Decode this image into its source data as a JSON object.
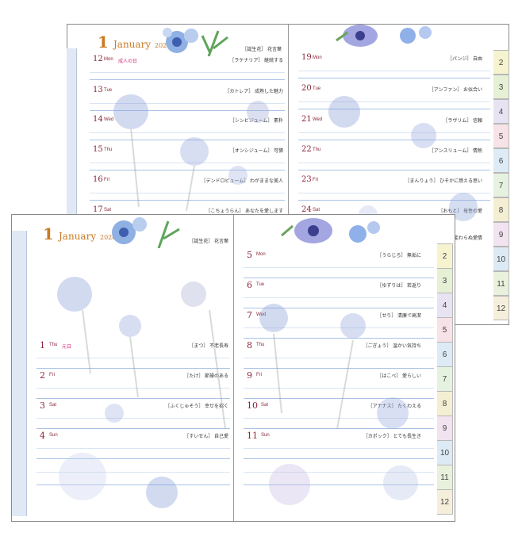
{
  "back_spread": {
    "left": {
      "month_num": "1",
      "month_name": "January",
      "year": "2026",
      "header_note": "［誕生花］ 花言葉",
      "days": [
        {
          "num": "12",
          "dow": "Mon",
          "holiday": "成人の日",
          "note": "［ラケナリア］ 継続する"
        },
        {
          "num": "13",
          "dow": "Tue",
          "holiday": "",
          "note": "［カトレア］ 成熟した魅力"
        },
        {
          "num": "14",
          "dow": "Wed",
          "holiday": "",
          "note": "［シンビジューム］ 素朴"
        },
        {
          "num": "15",
          "dow": "Thu",
          "holiday": "",
          "note": "［オンシジューム］ 可憐"
        },
        {
          "num": "16",
          "dow": "Fri",
          "holiday": "",
          "note": "［デンドロビューム］ わがままな美人"
        },
        {
          "num": "17",
          "dow": "Sat",
          "holiday": "",
          "note": "［こちょうらん］ あなたを愛します"
        }
      ]
    },
    "right": {
      "days": [
        {
          "num": "19",
          "dow": "Mon",
          "holiday": "",
          "note": "［パンジ］ 自由"
        },
        {
          "num": "20",
          "dow": "Tue",
          "holiday": "",
          "note": "［アンファン］ お似合い"
        },
        {
          "num": "21",
          "dow": "Wed",
          "holiday": "",
          "note": "［ラヴリム］ 信頼"
        },
        {
          "num": "22",
          "dow": "Thu",
          "holiday": "",
          "note": "［アンスリューム］ 情熱"
        },
        {
          "num": "23",
          "dow": "Fri",
          "holiday": "",
          "note": "［まんりょう］ ひそかに燃える思い"
        },
        {
          "num": "24",
          "dow": "Sat",
          "holiday": "",
          "note": "［おもと］ 母性の愛"
        },
        {
          "num": "",
          "dow": "",
          "holiday": "",
          "note": "永遠に変わらぬ愛情"
        }
      ],
      "tabs": [
        "2",
        "3",
        "4",
        "5",
        "6",
        "7",
        "8",
        "9",
        "10",
        "11",
        "12"
      ]
    }
  },
  "front_spread": {
    "left": {
      "month_num": "1",
      "month_name": "January",
      "year": "2026",
      "header_note": "［誕生花］ 花言葉",
      "days": [
        {
          "num": "1",
          "dow": "Thu",
          "holiday": "元日",
          "note": "［まつ］ 不老長寿"
        },
        {
          "num": "2",
          "dow": "Fri",
          "holiday": "",
          "note": "［たけ］ 節操のある"
        },
        {
          "num": "3",
          "dow": "Sat",
          "holiday": "",
          "note": "［ふくじゅそう］ 幸せを招く"
        },
        {
          "num": "4",
          "dow": "Sun",
          "holiday": "",
          "note": "［すいせん］ 自己愛"
        }
      ]
    },
    "right": {
      "days": [
        {
          "num": "5",
          "dow": "Mon",
          "holiday": "",
          "note": "［うらじろ］ 無垢に"
        },
        {
          "num": "6",
          "dow": "Tue",
          "holiday": "",
          "note": "［ゆずりは］ 若返り"
        },
        {
          "num": "7",
          "dow": "Wed",
          "holiday": "",
          "note": "［せり］ 清廉で高潔"
        },
        {
          "num": "8",
          "dow": "Thu",
          "holiday": "",
          "note": "［ごぎょう］ 温かい気持ち"
        },
        {
          "num": "9",
          "dow": "Fri",
          "holiday": "",
          "note": "［はこべ］ 愛らしい"
        },
        {
          "num": "10",
          "dow": "Sat",
          "holiday": "",
          "note": "［アナナス］ たくわえる"
        },
        {
          "num": "11",
          "dow": "Sun",
          "holiday": "",
          "note": "［カポック］ とても長生き"
        }
      ],
      "tabs": [
        "2",
        "3",
        "4",
        "5",
        "6",
        "7",
        "8",
        "9",
        "10",
        "11",
        "12"
      ]
    }
  },
  "colors": {
    "accent_orange": "#c97a22",
    "day_text": "#8a2638",
    "holiday_pink": "#d62a7a",
    "rule_blue": "#a9c3e6",
    "tab_palette": [
      "#f6f3cf",
      "#e5f0d5",
      "#e8e3f3",
      "#f7e2e8",
      "#dcebf5",
      "#e6f2e0",
      "#f4efd2",
      "#f1e3ef",
      "#dceaf5",
      "#e9f1dc",
      "#f5eedb"
    ]
  },
  "icons": {
    "flower_header": "blue-flower-bouquet-icon",
    "flower_watermark": "watercolor-flower-icon"
  }
}
